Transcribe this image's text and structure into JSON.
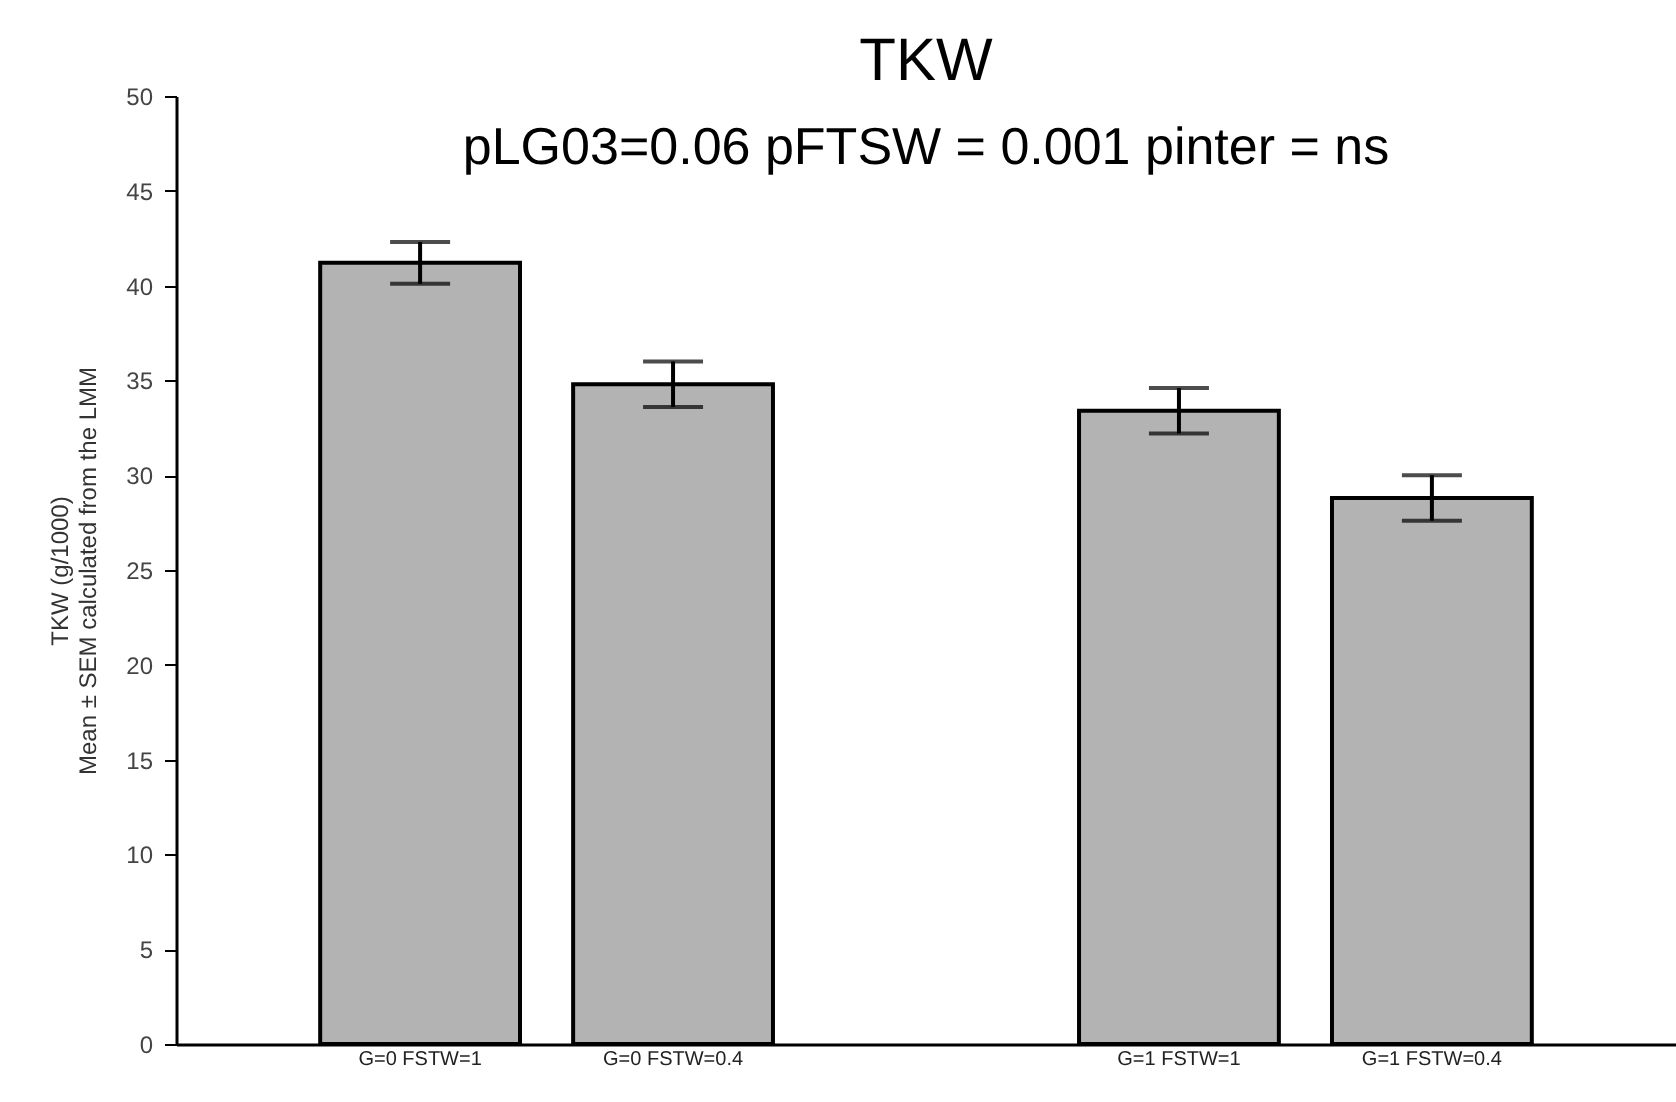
{
  "chart_data": {
    "type": "bar",
    "title": "TKW",
    "subtitle": "pLG03=0.06 pFTSW = 0.001 pinter = ns",
    "ylabel": "TKW (g/1000)\nMean ± SEM calculated from the LMM",
    "categories": [
      "G=0 FSTW=1",
      "G=0 FSTW=0.4",
      null,
      "G=1 FSTW=1",
      "G=1 FSTW=0.4"
    ],
    "values": [
      41.2,
      34.8,
      null,
      33.4,
      28.8
    ],
    "errors": [
      1.1,
      1.2,
      null,
      1.2,
      1.2
    ],
    "color": "#b3b3b3",
    "ylim": [
      0,
      50
    ],
    "yticks": [
      0,
      5,
      10,
      15,
      20,
      25,
      30,
      35,
      40,
      45,
      50
    ],
    "grid": false
  }
}
